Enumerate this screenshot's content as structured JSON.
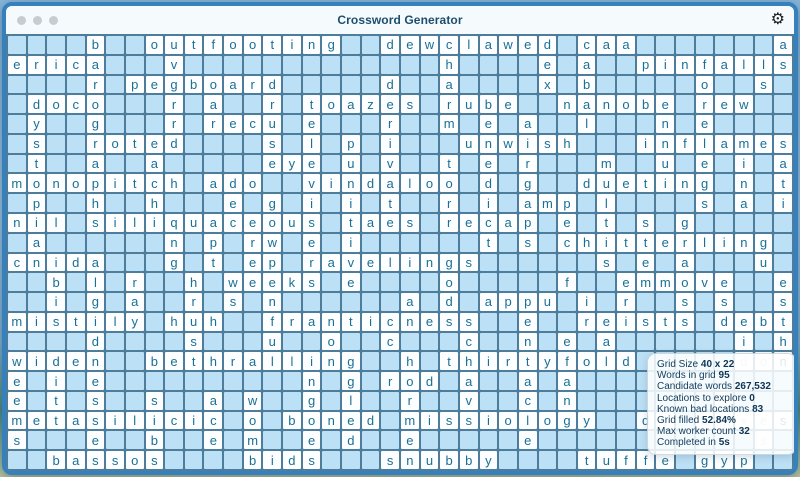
{
  "window": {
    "title": "Crossword Generator",
    "gear_icon": "gear",
    "traffic_lights": [
      "close",
      "minimize",
      "zoom"
    ]
  },
  "grid": {
    "cols": 40,
    "rows": 22,
    "empty_char": ".",
    "rows_data": [
      "....b..outfooting..dewclawed.caa.......a",
      "erica...v.............h....e.a..pinfalls",
      "....r.pegboard.....d..a....x.b.....o..s.",
      ".doco...r.a..r.toazes.rube..nanobe.rew..",
      ".y..g...r.recu.e...r..m.e.a..l...n.e....",
      ".s..roted....s.l.p.i...unwish...inflames",
      ".t..a..a.....eye.u.v..t.e.r...m..u.e.i.a",
      "monopitch.ado..vindaloo.d.g..dueting.n.t",
      ".p..h..h...e.g.i.i.t..r.i.amp.l....s.a.i",
      "nil.siliquaceous.taes.recap.e.t.s.g.....",
      ".a......n.p.rw.e.i......t.s.chitterling.",
      "cnida...g.t.ep.ravelings......s.e.a...u.",
      "..b.l.r..h.weeks.e....o.....f..emmove..e",
      "..i.g.a..r.s.n......a.d.appu.i.r..s.s..s",
      "mistily.huh..franticness..e..reists.debt",
      "....d....s...u..o..c...c..n.e.a......i.h",
      "widen..bethralling..h.thirtyfold.....don",
      "e.i.e..........n.g.rod.a..a.a...........",
      "e.t.s..s..a.w..g.l..r..v..c.n.......s...",
      "metasilicic.o.boned.missiology..dl.uexes",
      "s...e..b..e.m..e.d..e.....e...........s.",
      "..bassos....bids...snubby....tuffe.gyp.."
    ],
    "ghost_cells": [
      [
        16,
        37
      ],
      [
        16,
        38
      ],
      [
        18,
        36
      ],
      [
        19,
        33
      ],
      [
        19,
        35
      ],
      [
        19,
        36
      ],
      [
        19,
        37
      ],
      [
        19,
        38
      ],
      [
        20,
        38
      ]
    ]
  },
  "stats_panel": {
    "lines": [
      {
        "label": "Grid Size",
        "value": "40 x 22"
      },
      {
        "label": "Words in grid",
        "value": "95"
      },
      {
        "label": "Candidate words",
        "value": "267,532"
      },
      {
        "label": "Locations to explore",
        "value": "0"
      },
      {
        "label": "Known bad locations",
        "value": "83"
      },
      {
        "label": "Grid filled",
        "value": "52.84%"
      },
      {
        "label": "Max worker count",
        "value": "32"
      },
      {
        "label": "Completed in",
        "value": "5s"
      }
    ]
  },
  "colors": {
    "window_border": "#3580bd",
    "empty_cell": "#bce0f5",
    "filled_cell": "#fdfeff",
    "grid_line": "#4e7d9c",
    "letter": "#1a7094",
    "title_text": "#1e4e6d",
    "stats_text": "#123c5c"
  }
}
